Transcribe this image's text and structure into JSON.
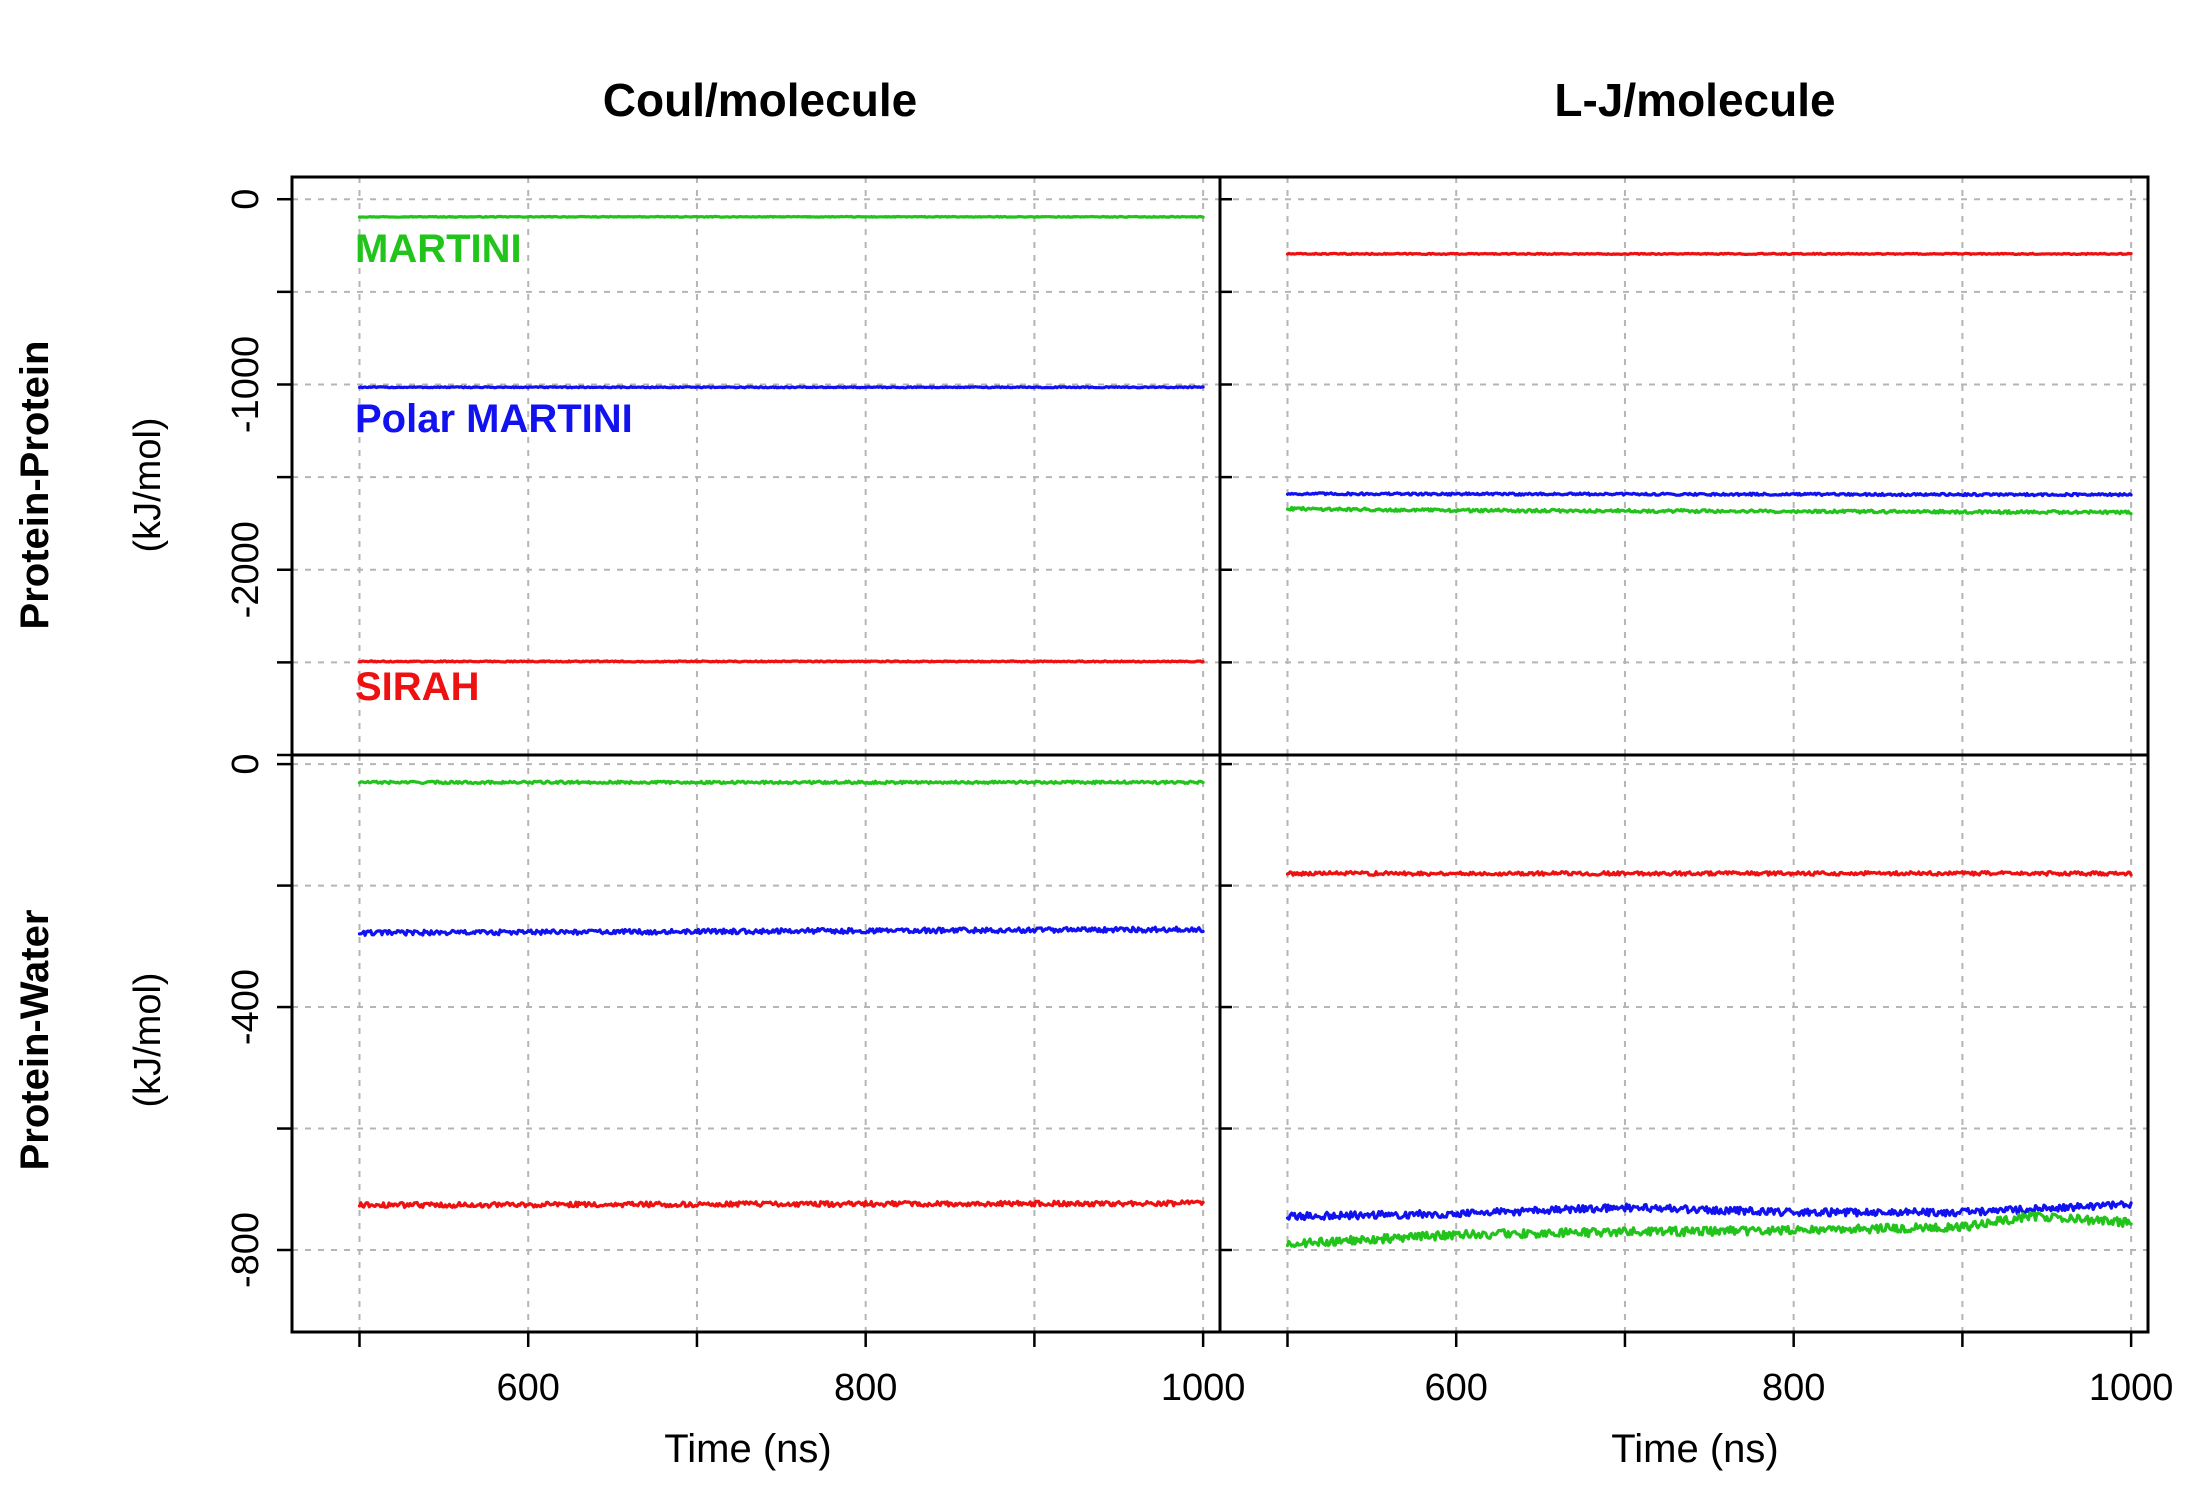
{
  "chart_data": {
    "type": "line",
    "layout": "2x2 grid, shared x-axis per column",
    "columns": [
      {
        "title": "Coul/molecule",
        "xlabel": "Time (ns)"
      },
      {
        "title": "L-J/molecule",
        "xlabel": "Time (ns)"
      }
    ],
    "rows": [
      {
        "title": "Protein-Protein",
        "unit": "(kJ/mol)",
        "ylim": [
          -3000,
          120
        ],
        "yticks": [
          0,
          -1000,
          -2000
        ],
        "yticks_unlabeled": [
          -500,
          -1500,
          -2500,
          -3000
        ]
      },
      {
        "title": "Protein-Water",
        "unit": "(kJ/mol)",
        "ylim": [
          -935,
          15
        ],
        "yticks": [
          0,
          -400,
          -800
        ],
        "yticks_unlabeled": [
          -200,
          -600
        ]
      }
    ],
    "xlim": [
      460,
      1010
    ],
    "xticks": [
      600,
      800,
      1000
    ],
    "xticks_unlabeled": [
      500,
      700,
      900
    ],
    "grid": true,
    "series_colors": {
      "MARTINI": "#22c41c",
      "Polar MARTINI": "#1212f0",
      "SIRAH": "#ee1111"
    },
    "series_labels": [
      {
        "name": "MARTINI",
        "color": "#22c41c"
      },
      {
        "name": "Polar MARTINI",
        "color": "#1212f0"
      },
      {
        "name": "SIRAH",
        "color": "#ee1111"
      }
    ],
    "panels": [
      {
        "id": "protein-protein-coul",
        "row": 0,
        "col": 0,
        "series": [
          {
            "name": "MARTINI",
            "x": [
              500,
              1000
            ],
            "y": [
              -95,
              -95
            ],
            "noise": 2
          },
          {
            "name": "Polar MARTINI",
            "x": [
              500,
              1000
            ],
            "y": [
              -1015,
              -1015
            ],
            "noise": 3
          },
          {
            "name": "SIRAH",
            "x": [
              500,
              1000
            ],
            "y": [
              -2495,
              -2495
            ],
            "noise": 3
          }
        ]
      },
      {
        "id": "protein-protein-lj",
        "row": 0,
        "col": 1,
        "series": [
          {
            "name": "SIRAH",
            "x": [
              500,
              1000
            ],
            "y": [
              -295,
              -295
            ],
            "noise": 3
          },
          {
            "name": "Polar MARTINI",
            "x": [
              500,
              1000
            ],
            "y": [
              -1590,
              -1595
            ],
            "noise": 6
          },
          {
            "name": "MARTINI",
            "x": [
              500,
              600,
              800,
              1000
            ],
            "y": [
              -1670,
              -1680,
              -1685,
              -1690
            ],
            "noise": 8
          }
        ]
      },
      {
        "id": "protein-water-coul",
        "row": 1,
        "col": 0,
        "series": [
          {
            "name": "MARTINI",
            "x": [
              500,
              1000
            ],
            "y": [
              -30,
              -30
            ],
            "noise": 2
          },
          {
            "name": "Polar MARTINI",
            "x": [
              500,
              1000
            ],
            "y": [
              -278,
              -272
            ],
            "noise": 4
          },
          {
            "name": "SIRAH",
            "x": [
              500,
              1000
            ],
            "y": [
              -726,
              -723
            ],
            "noise": 4
          }
        ]
      },
      {
        "id": "protein-water-lj",
        "row": 1,
        "col": 1,
        "series": [
          {
            "name": "SIRAH",
            "x": [
              500,
              1000
            ],
            "y": [
              -180,
              -180
            ],
            "noise": 3
          },
          {
            "name": "Polar MARTINI",
            "x": [
              500,
              600,
              700,
              800,
              900,
              1000
            ],
            "y": [
              -745,
              -740,
              -730,
              -738,
              -738,
              -725
            ],
            "noise": 6
          },
          {
            "name": "MARTINI",
            "x": [
              500,
              600,
              700,
              800,
              900,
              940,
              1000
            ],
            "y": [
              -790,
              -775,
              -770,
              -768,
              -762,
              -745,
              -755
            ],
            "noise": 7
          }
        ]
      }
    ]
  }
}
